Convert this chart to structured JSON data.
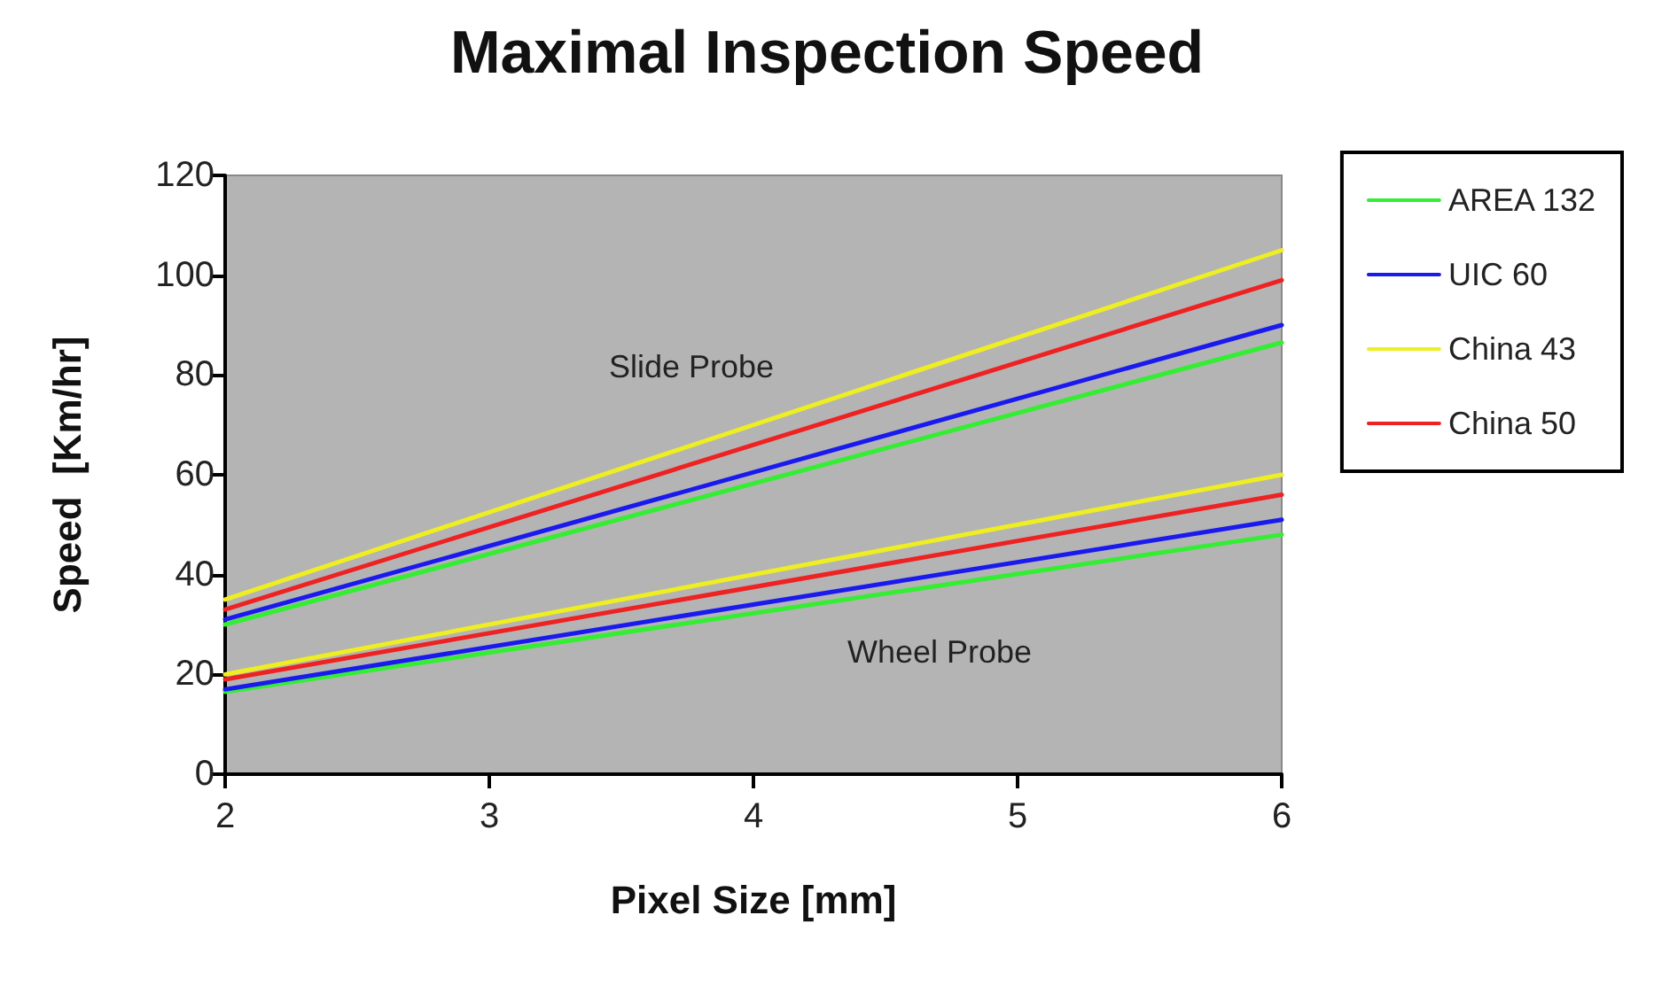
{
  "chart_data": {
    "type": "line",
    "title": "Maximal Inspection Speed",
    "xlabel": "Pixel Size [mm]",
    "ylabel": "Speed  [Km/hr]",
    "x": [
      2,
      6
    ],
    "xlim": [
      2,
      6
    ],
    "xticks": [
      2,
      3,
      4,
      5,
      6
    ],
    "ylim": [
      0,
      120
    ],
    "yticks": [
      0,
      20,
      40,
      60,
      80,
      100,
      120
    ],
    "grid": false,
    "legend": "right",
    "marker": "none",
    "line_style": "solid",
    "annotations": [
      "Slide Probe",
      "Wheel Probe"
    ],
    "series": [
      {
        "name": "AREA 132",
        "color": "#33ee33",
        "values": [
          30,
          86.5
        ]
      },
      {
        "name": "UIC 60",
        "color": "#1a1aee",
        "values": [
          31,
          90
        ]
      },
      {
        "name": "China 43",
        "color": "#eeee22",
        "values": [
          35,
          105
        ]
      },
      {
        "name": "China 50",
        "color": "#ee2222",
        "values": [
          33,
          99
        ]
      },
      {
        "color": "#33ee33",
        "values": [
          16.5,
          48
        ]
      },
      {
        "color": "#1a1aee",
        "values": [
          17,
          51
        ]
      },
      {
        "color": "#eeee22",
        "values": [
          20,
          60
        ]
      },
      {
        "color": "#ee2222",
        "values": [
          19,
          56
        ]
      }
    ]
  }
}
